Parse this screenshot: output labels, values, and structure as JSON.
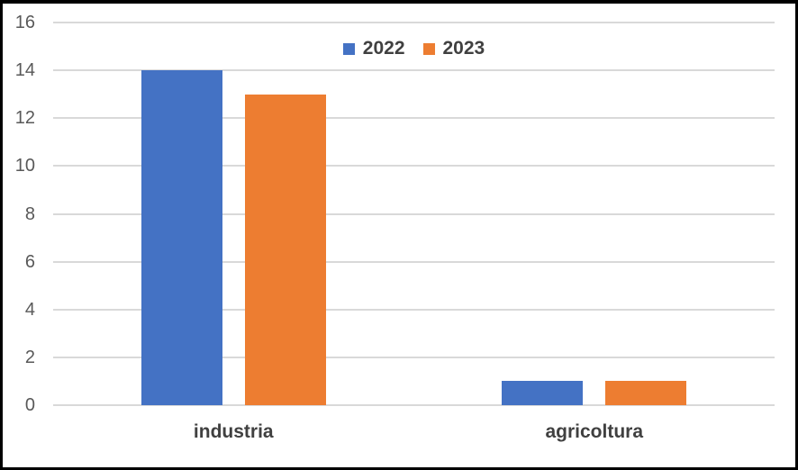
{
  "chart": {
    "background_color": "#FFFFFF",
    "frame_border_color": "#000000",
    "gridline_color": "#D9D9D9",
    "tick_label_color": "#595959",
    "category_label_color": "#404040",
    "legend_text_color": "#404040"
  },
  "chart_data": {
    "type": "bar",
    "categories": [
      "industria",
      "agricoltura"
    ],
    "series": [
      {
        "name": "2022",
        "color": "#4472C4",
        "values": [
          14,
          1
        ]
      },
      {
        "name": "2023",
        "color": "#ED7D31",
        "values": [
          13,
          1
        ]
      }
    ],
    "ylim": [
      0,
      16
    ],
    "y_step": 2,
    "y_ticks": [
      0,
      2,
      4,
      6,
      8,
      10,
      12,
      14,
      16
    ],
    "grid": true,
    "legend_position": "top-center"
  }
}
